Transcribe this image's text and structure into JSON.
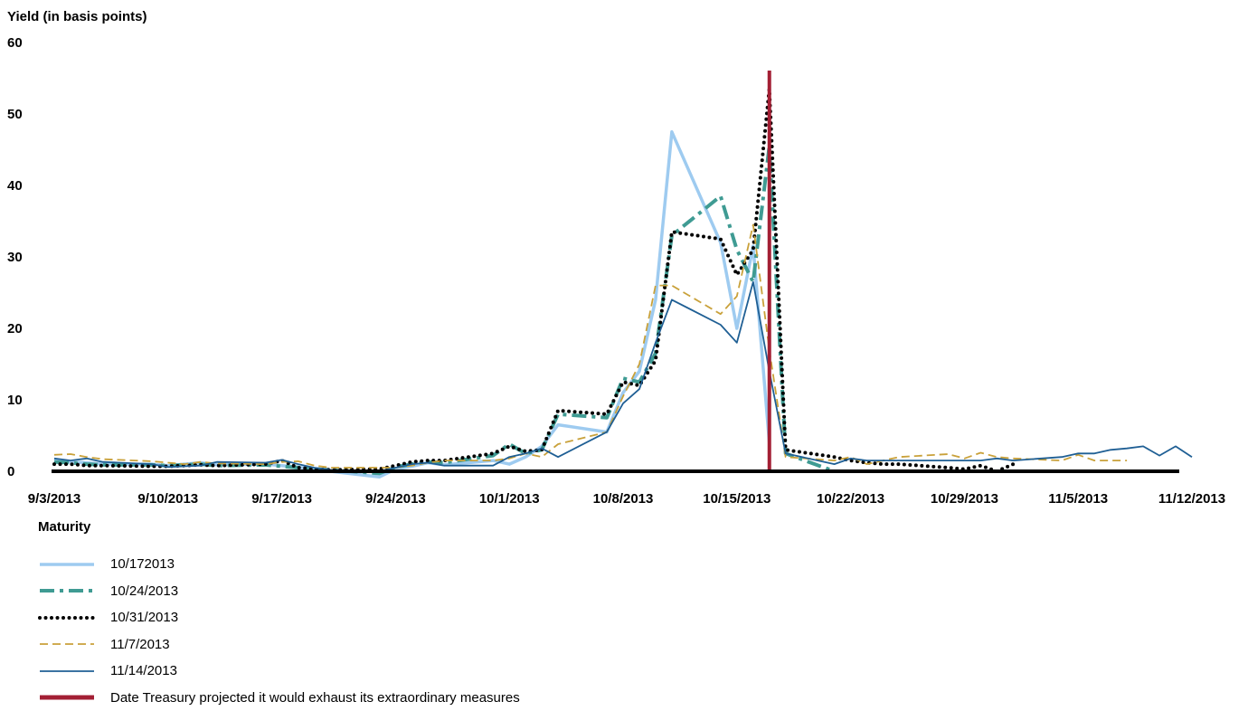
{
  "chart_data": {
    "type": "line",
    "ylabel": "Yield (in basis points)",
    "ylim": [
      0,
      60
    ],
    "yticks": [
      0,
      10,
      20,
      30,
      40,
      50,
      60
    ],
    "xlim": [
      "2013-09-03",
      "2013-11-12"
    ],
    "xticks": [
      "9/3/2013",
      "9/10/2013",
      "9/17/2013",
      "9/24/2013",
      "10/1/2013",
      "10/8/2013",
      "10/15/2013",
      "10/22/2013",
      "10/29/2013",
      "11/5/2013",
      "11/12/2013"
    ],
    "grid": false,
    "legend_title": "Maturity",
    "legend_position": "bottom-left",
    "reference_line": {
      "date": "2013-10-17",
      "label": "Date Treasury projected it would exhaust its extraordinary measures",
      "color": "#a31f34"
    },
    "series": [
      {
        "name": "10/172013",
        "color": "#9ecbf0",
        "style": "solid-thick",
        "points": [
          [
            "2013-09-03",
            1.5
          ],
          [
            "2013-09-04",
            1.3
          ],
          [
            "2013-09-05",
            1.2
          ],
          [
            "2013-09-06",
            1.0
          ],
          [
            "2013-09-09",
            1.0
          ],
          [
            "2013-09-10",
            0.8
          ],
          [
            "2013-09-11",
            1.0
          ],
          [
            "2013-09-12",
            1.2
          ],
          [
            "2013-09-13",
            0.9
          ],
          [
            "2013-09-16",
            1.0
          ],
          [
            "2013-09-17",
            0.8
          ],
          [
            "2013-09-18",
            0.6
          ],
          [
            "2013-09-19",
            0.2
          ],
          [
            "2013-09-20",
            0.0
          ],
          [
            "2013-09-23",
            -0.8
          ],
          [
            "2013-09-24",
            0.3
          ],
          [
            "2013-09-25",
            0.7
          ],
          [
            "2013-09-26",
            1.2
          ],
          [
            "2013-09-27",
            0.9
          ],
          [
            "2013-09-30",
            1.5
          ],
          [
            "2013-10-01",
            1.0
          ],
          [
            "2013-10-02",
            2.0
          ],
          [
            "2013-10-03",
            3.5
          ],
          [
            "2013-10-04",
            6.5
          ],
          [
            "2013-10-07",
            5.5
          ],
          [
            "2013-10-08",
            11.0
          ],
          [
            "2013-10-09",
            14.0
          ],
          [
            "2013-10-10",
            24.0
          ],
          [
            "2013-10-11",
            47.5
          ],
          [
            "2013-10-14",
            32.0
          ],
          [
            "2013-10-15",
            20.0
          ],
          [
            "2013-10-16",
            31.5
          ],
          [
            "2013-10-17",
            4.0
          ]
        ]
      },
      {
        "name": "10/24/2013",
        "color": "#3f9b93",
        "style": "dash-dot-thick",
        "points": [
          [
            "2013-09-03",
            1.3
          ],
          [
            "2013-09-04",
            1.2
          ],
          [
            "2013-09-05",
            1.0
          ],
          [
            "2013-09-06",
            0.9
          ],
          [
            "2013-09-09",
            0.9
          ],
          [
            "2013-09-10",
            0.8
          ],
          [
            "2013-09-11",
            0.9
          ],
          [
            "2013-09-12",
            1.0
          ],
          [
            "2013-09-13",
            0.8
          ],
          [
            "2013-09-16",
            0.9
          ],
          [
            "2013-09-17",
            0.7
          ],
          [
            "2013-09-18",
            0.5
          ],
          [
            "2013-09-19",
            0.3
          ],
          [
            "2013-09-20",
            0.2
          ],
          [
            "2013-09-23",
            -0.3
          ],
          [
            "2013-09-24",
            0.6
          ],
          [
            "2013-09-25",
            1.0
          ],
          [
            "2013-09-26",
            1.3
          ],
          [
            "2013-09-27",
            1.2
          ],
          [
            "2013-09-30",
            2.2
          ],
          [
            "2013-10-01",
            3.8
          ],
          [
            "2013-10-02",
            2.5
          ],
          [
            "2013-10-03",
            3.0
          ],
          [
            "2013-10-04",
            8.0
          ],
          [
            "2013-10-07",
            7.5
          ],
          [
            "2013-10-08",
            13.0
          ],
          [
            "2013-10-09",
            12.5
          ],
          [
            "2013-10-10",
            16.5
          ],
          [
            "2013-10-11",
            33.0
          ],
          [
            "2013-10-14",
            38.5
          ],
          [
            "2013-10-15",
            31.0
          ],
          [
            "2013-10-16",
            26.5
          ],
          [
            "2013-10-17",
            45.5
          ],
          [
            "2013-10-18",
            2.5
          ],
          [
            "2013-10-21",
            0.0
          ]
        ]
      },
      {
        "name": "10/31/2013",
        "color": "#000000",
        "style": "dotted",
        "points": [
          [
            "2013-09-03",
            1.0
          ],
          [
            "2013-09-04",
            1.0
          ],
          [
            "2013-09-05",
            0.8
          ],
          [
            "2013-09-06",
            0.8
          ],
          [
            "2013-09-09",
            0.7
          ],
          [
            "2013-09-10",
            0.7
          ],
          [
            "2013-09-11",
            0.8
          ],
          [
            "2013-09-12",
            0.9
          ],
          [
            "2013-09-13",
            0.8
          ],
          [
            "2013-09-16",
            1.0
          ],
          [
            "2013-09-17",
            1.5
          ],
          [
            "2013-09-18",
            0.5
          ],
          [
            "2013-09-19",
            0.3
          ],
          [
            "2013-09-20",
            0.2
          ],
          [
            "2013-09-23",
            0.3
          ],
          [
            "2013-09-24",
            0.8
          ],
          [
            "2013-09-25",
            1.3
          ],
          [
            "2013-09-26",
            1.5
          ],
          [
            "2013-09-27",
            1.5
          ],
          [
            "2013-09-30",
            2.5
          ],
          [
            "2013-10-01",
            3.5
          ],
          [
            "2013-10-02",
            2.8
          ],
          [
            "2013-10-03",
            3.0
          ],
          [
            "2013-10-04",
            8.5
          ],
          [
            "2013-10-07",
            8.0
          ],
          [
            "2013-10-08",
            12.5
          ],
          [
            "2013-10-09",
            12.0
          ],
          [
            "2013-10-10",
            15.5
          ],
          [
            "2013-10-11",
            33.5
          ],
          [
            "2013-10-14",
            32.5
          ],
          [
            "2013-10-15",
            27.5
          ],
          [
            "2013-10-16",
            31.0
          ],
          [
            "2013-10-17",
            53.5
          ],
          [
            "2013-10-18",
            3.0
          ],
          [
            "2013-10-21",
            2.0
          ],
          [
            "2013-10-22",
            1.5
          ],
          [
            "2013-10-23",
            1.2
          ],
          [
            "2013-10-24",
            1.0
          ],
          [
            "2013-10-25",
            1.0
          ],
          [
            "2013-10-28",
            0.5
          ],
          [
            "2013-10-29",
            0.3
          ],
          [
            "2013-10-30",
            0.8
          ],
          [
            "2013-10-31",
            0.0
          ],
          [
            "2013-11-01",
            1.0
          ]
        ]
      },
      {
        "name": "11/7/2013",
        "color": "#c9a13a",
        "style": "dashed",
        "points": [
          [
            "2013-09-03",
            2.3
          ],
          [
            "2013-09-04",
            2.4
          ],
          [
            "2013-09-05",
            2.0
          ],
          [
            "2013-09-06",
            1.7
          ],
          [
            "2013-09-09",
            1.4
          ],
          [
            "2013-09-10",
            1.2
          ],
          [
            "2013-09-11",
            1.0
          ],
          [
            "2013-09-12",
            1.3
          ],
          [
            "2013-09-13",
            1.1
          ],
          [
            "2013-09-16",
            1.0
          ],
          [
            "2013-09-17",
            1.3
          ],
          [
            "2013-09-18",
            1.4
          ],
          [
            "2013-09-19",
            0.8
          ],
          [
            "2013-09-20",
            0.5
          ],
          [
            "2013-09-23",
            0.5
          ],
          [
            "2013-09-24",
            0.5
          ],
          [
            "2013-09-25",
            0.8
          ],
          [
            "2013-09-26",
            1.2
          ],
          [
            "2013-09-27",
            1.5
          ],
          [
            "2013-09-30",
            1.5
          ],
          [
            "2013-10-01",
            1.8
          ],
          [
            "2013-10-02",
            2.5
          ],
          [
            "2013-10-03",
            2.0
          ],
          [
            "2013-10-04",
            3.8
          ],
          [
            "2013-10-07",
            5.5
          ],
          [
            "2013-10-08",
            10.5
          ],
          [
            "2013-10-09",
            15.0
          ],
          [
            "2013-10-10",
            26.0
          ],
          [
            "2013-10-11",
            26.0
          ],
          [
            "2013-10-14",
            22.0
          ],
          [
            "2013-10-15",
            24.5
          ],
          [
            "2013-10-16",
            34.5
          ],
          [
            "2013-10-17",
            17.0
          ],
          [
            "2013-10-18",
            2.0
          ],
          [
            "2013-10-21",
            1.5
          ],
          [
            "2013-10-22",
            2.0
          ],
          [
            "2013-10-23",
            1.0
          ],
          [
            "2013-10-24",
            1.5
          ],
          [
            "2013-10-25",
            2.0
          ],
          [
            "2013-10-28",
            2.4
          ],
          [
            "2013-10-29",
            1.8
          ],
          [
            "2013-10-30",
            2.6
          ],
          [
            "2013-10-31",
            2.0
          ],
          [
            "2013-11-01",
            1.8
          ],
          [
            "2013-11-04",
            1.5
          ],
          [
            "2013-11-05",
            2.3
          ],
          [
            "2013-11-06",
            1.5
          ],
          [
            "2013-11-07",
            1.5
          ],
          [
            "2013-11-08",
            1.5
          ]
        ]
      },
      {
        "name": "11/14/2013",
        "color": "#1f5f94",
        "style": "solid-thin",
        "points": [
          [
            "2013-09-03",
            1.8
          ],
          [
            "2013-09-04",
            1.5
          ],
          [
            "2013-09-05",
            1.8
          ],
          [
            "2013-09-06",
            1.3
          ],
          [
            "2013-09-09",
            1.0
          ],
          [
            "2013-09-10",
            0.6
          ],
          [
            "2013-09-11",
            0.7
          ],
          [
            "2013-09-12",
            0.8
          ],
          [
            "2013-09-13",
            1.3
          ],
          [
            "2013-09-16",
            1.2
          ],
          [
            "2013-09-17",
            1.6
          ],
          [
            "2013-09-18",
            1.0
          ],
          [
            "2013-09-19",
            0.5
          ],
          [
            "2013-09-20",
            0.2
          ],
          [
            "2013-09-23",
            0.0
          ],
          [
            "2013-09-24",
            0.5
          ],
          [
            "2013-09-25",
            1.0
          ],
          [
            "2013-09-26",
            1.2
          ],
          [
            "2013-09-27",
            0.8
          ],
          [
            "2013-09-30",
            0.8
          ],
          [
            "2013-10-01",
            2.0
          ],
          [
            "2013-10-02",
            2.5
          ],
          [
            "2013-10-03",
            3.2
          ],
          [
            "2013-10-04",
            2.0
          ],
          [
            "2013-10-07",
            5.5
          ],
          [
            "2013-10-08",
            9.5
          ],
          [
            "2013-10-09",
            11.5
          ],
          [
            "2013-10-10",
            18.0
          ],
          [
            "2013-10-11",
            24.0
          ],
          [
            "2013-10-14",
            20.5
          ],
          [
            "2013-10-15",
            18.0
          ],
          [
            "2013-10-16",
            26.5
          ],
          [
            "2013-10-17",
            14.0
          ],
          [
            "2013-10-18",
            2.5
          ],
          [
            "2013-10-21",
            1.0
          ],
          [
            "2013-10-22",
            1.8
          ],
          [
            "2013-10-23",
            1.5
          ],
          [
            "2013-10-24",
            1.5
          ],
          [
            "2013-10-25",
            1.5
          ],
          [
            "2013-10-28",
            1.5
          ],
          [
            "2013-10-29",
            1.5
          ],
          [
            "2013-10-30",
            1.5
          ],
          [
            "2013-10-31",
            1.8
          ],
          [
            "2013-11-01",
            1.5
          ],
          [
            "2013-11-04",
            2.0
          ],
          [
            "2013-11-05",
            2.5
          ],
          [
            "2013-11-06",
            2.5
          ],
          [
            "2013-11-07",
            3.0
          ],
          [
            "2013-11-08",
            3.2
          ],
          [
            "2013-11-09",
            3.5
          ],
          [
            "2013-11-10",
            2.2
          ],
          [
            "2013-11-11",
            3.5
          ],
          [
            "2013-11-12",
            2.0
          ]
        ]
      }
    ]
  }
}
